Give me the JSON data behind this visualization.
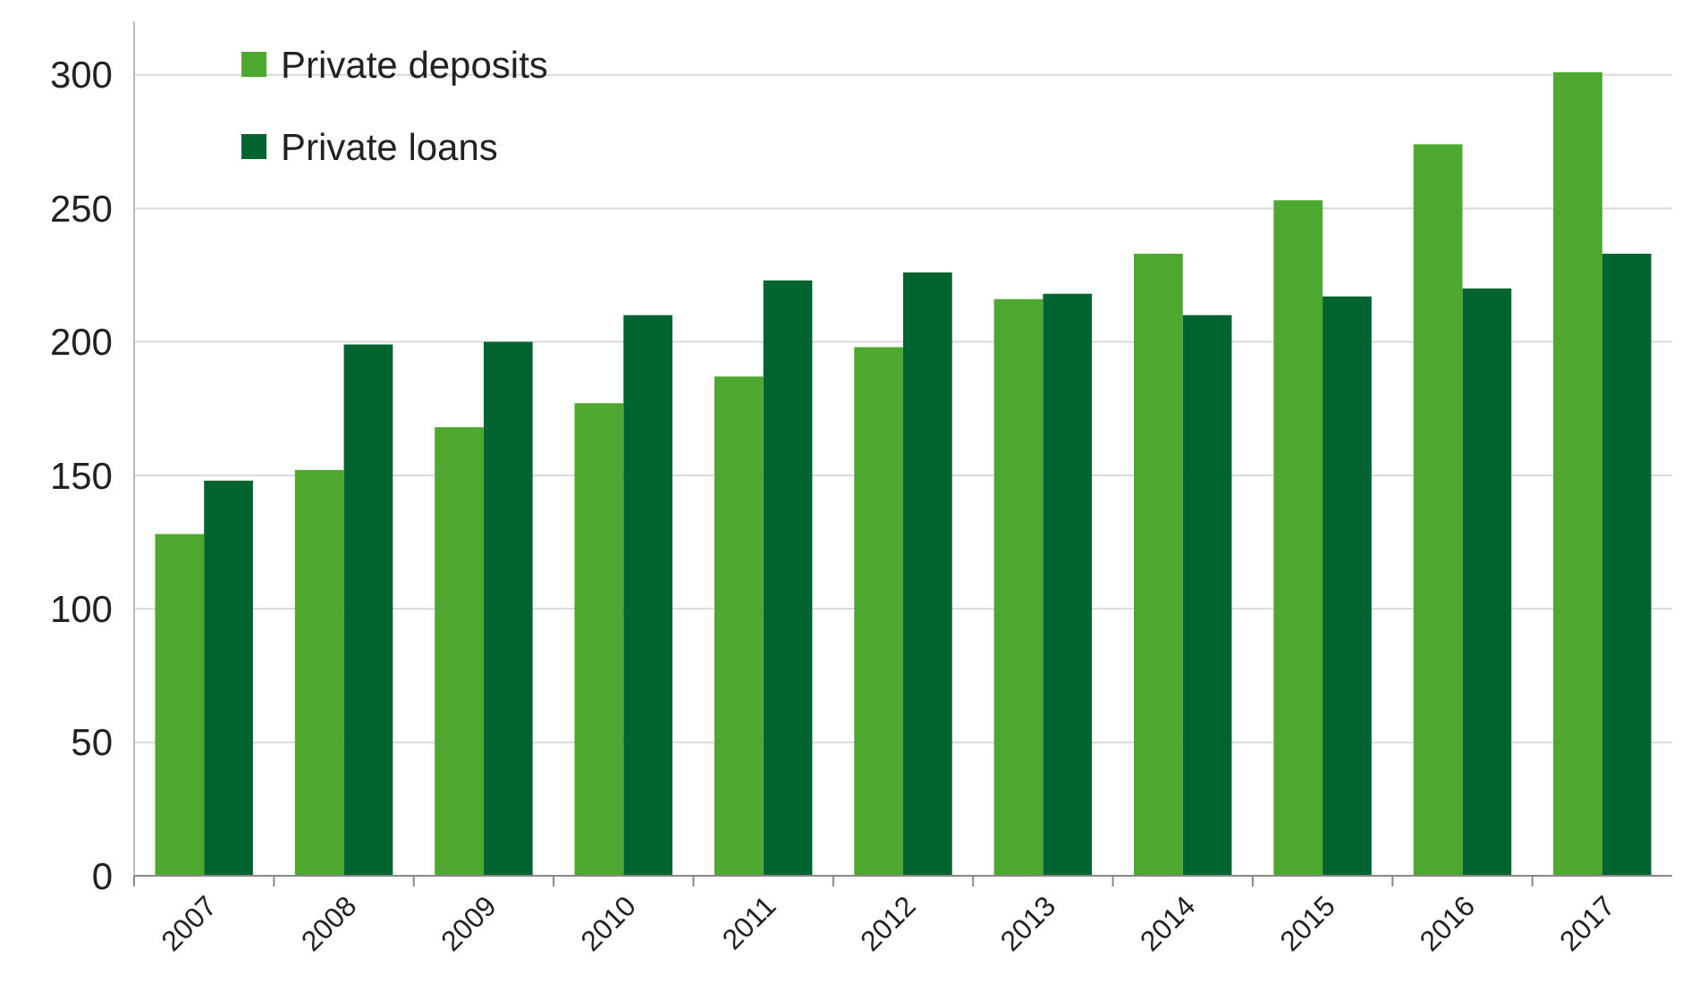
{
  "chart_data": {
    "type": "bar",
    "categories": [
      "2007",
      "2008",
      "2009",
      "2010",
      "2011",
      "2012",
      "2013",
      "2014",
      "2015",
      "2016",
      "2017"
    ],
    "series": [
      {
        "name": "Private deposits",
        "color": "#4ea72e",
        "values": [
          128,
          152,
          168,
          177,
          187,
          198,
          216,
          233,
          253,
          274,
          301
        ]
      },
      {
        "name": "Private loans",
        "color": "#006431",
        "values": [
          148,
          199,
          200,
          210,
          223,
          226,
          218,
          210,
          217,
          220,
          233
        ]
      }
    ],
    "ylim": [
      0,
      320
    ],
    "yticks": [
      0,
      50,
      100,
      150,
      200,
      250,
      300
    ],
    "grid": "y",
    "legend": "top left"
  }
}
